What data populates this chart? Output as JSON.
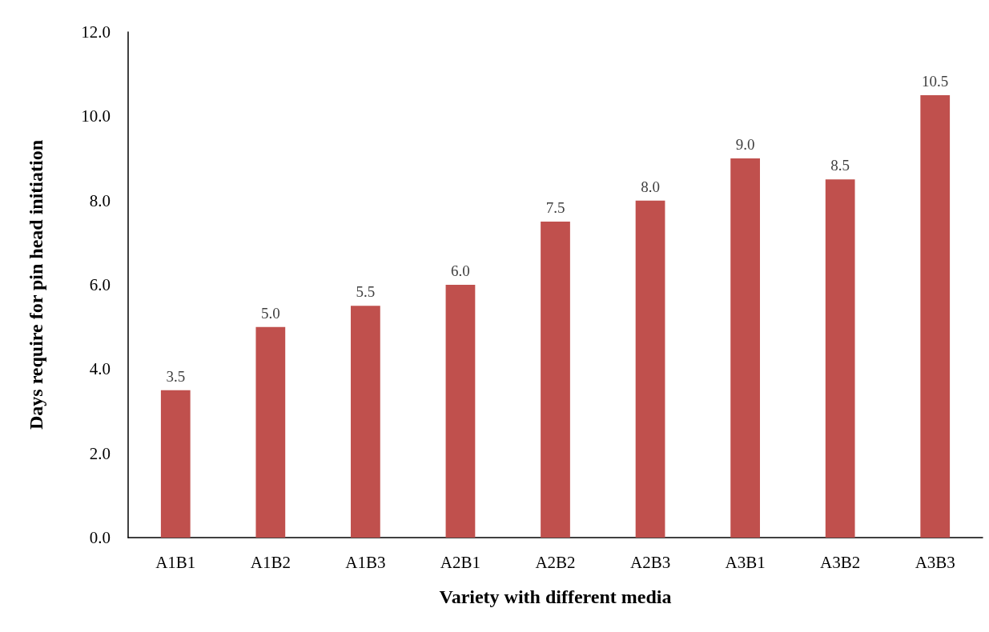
{
  "chart_data": {
    "type": "bar",
    "xlabel": "Variety with different media",
    "ylabel": "Days require for pin head initiation",
    "categories": [
      "A1B1",
      "A1B2",
      "A1B3",
      "A2B1",
      "A2B2",
      "A2B3",
      "A3B1",
      "A3B2",
      "A3B3"
    ],
    "values": [
      3.5,
      5.0,
      5.5,
      6.0,
      7.5,
      8.0,
      9.0,
      8.5,
      10.5
    ],
    "value_labels": [
      "3.5",
      "5.0",
      "5.5",
      "6.0",
      "7.5",
      "8.0",
      "9.0",
      "8.5",
      "10.5"
    ],
    "color": "#c0504d",
    "ylim": [
      0,
      12
    ],
    "yticks": [
      {
        "value": 0,
        "label": "0.0"
      },
      {
        "value": 2,
        "label": "2.0"
      },
      {
        "value": 4,
        "label": "4.0"
      },
      {
        "value": 6,
        "label": "6.0"
      },
      {
        "value": 8,
        "label": "8.0"
      },
      {
        "value": 10,
        "label": "10.0"
      },
      {
        "value": 12,
        "label": "12.0"
      }
    ],
    "grid": false
  }
}
